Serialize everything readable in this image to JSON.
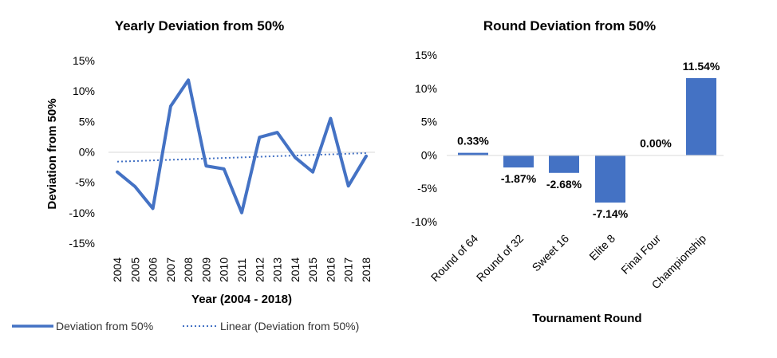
{
  "chart_data": [
    {
      "type": "line",
      "title": "Yearly Deviation from 50%",
      "xlabel": "Year (2004 - 2018)",
      "ylabel": "Deviation from 50%",
      "ylim": [
        -15,
        15
      ],
      "yticks": [
        15,
        10,
        5,
        0,
        -5,
        -10,
        -15
      ],
      "ytick_labels": [
        "15%",
        "10%",
        "5%",
        "0%",
        "-5%",
        "-10%",
        "-15%"
      ],
      "categories": [
        "2004",
        "2005",
        "2006",
        "2007",
        "2008",
        "2009",
        "2010",
        "2011",
        "2012",
        "2013",
        "2014",
        "2015",
        "2016",
        "2017",
        "2018"
      ],
      "series": [
        {
          "name": "Deviation from 50%",
          "values": [
            -3.3,
            -5.7,
            -9.3,
            7.5,
            11.8,
            -2.3,
            -2.8,
            -10.0,
            2.4,
            3.2,
            -0.9,
            -3.3,
            5.5,
            -5.6,
            -0.7
          ],
          "color": "#4472C4",
          "style": "solid"
        },
        {
          "name": "Linear (Deviation from 50%)",
          "values": [
            -1.6,
            -1.5,
            -1.4,
            -1.3,
            -1.2,
            -1.1,
            -1.0,
            -0.9,
            -0.8,
            -0.7,
            -0.6,
            -0.5,
            -0.4,
            -0.3,
            -0.2
          ],
          "color": "#4472C4",
          "style": "dotted"
        }
      ],
      "grid": false,
      "legend": "bottom"
    },
    {
      "type": "bar",
      "title": "Round Deviation from 50%",
      "xlabel": "Tournament Round",
      "ylabel": "",
      "ylim": [
        -10,
        15
      ],
      "yticks": [
        15,
        10,
        5,
        0,
        -5,
        -10
      ],
      "ytick_labels": [
        "15%",
        "10%",
        "5%",
        "0%",
        "-5%",
        "-10%"
      ],
      "categories": [
        "Round of 64",
        "Round of 32",
        "Sweet 16",
        "Elite 8",
        "Final Four",
        "Championship"
      ],
      "values": [
        0.33,
        -1.87,
        -2.68,
        -7.14,
        0.0,
        11.54
      ],
      "data_labels": [
        "0.33%",
        "-1.87%",
        "-2.68%",
        "-7.14%",
        "0.00%",
        "11.54%"
      ],
      "color": "#4472C4",
      "grid": false
    }
  ]
}
